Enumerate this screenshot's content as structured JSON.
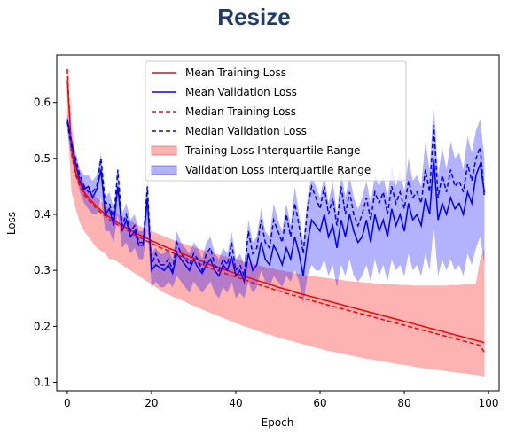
{
  "chart_data": {
    "type": "line",
    "title": "Resize",
    "xlabel": "Epoch",
    "ylabel": "Loss",
    "xlim": [
      -2.5,
      102.5
    ],
    "ylim": [
      0.085,
      0.685
    ],
    "xticks": [
      0,
      20,
      40,
      60,
      80,
      100
    ],
    "yticks": [
      0.1,
      0.2,
      0.3,
      0.4,
      0.5,
      0.6
    ],
    "grid": false,
    "legend_position": "top-center",
    "x": [
      0,
      1,
      2,
      3,
      4,
      5,
      6,
      7,
      8,
      9,
      10,
      11,
      12,
      13,
      14,
      15,
      16,
      17,
      18,
      19,
      20,
      21,
      22,
      23,
      24,
      25,
      26,
      27,
      28,
      29,
      30,
      31,
      32,
      33,
      34,
      35,
      36,
      37,
      38,
      39,
      40,
      41,
      42,
      43,
      44,
      45,
      46,
      47,
      48,
      49,
      50,
      51,
      52,
      53,
      54,
      55,
      56,
      57,
      58,
      59,
      60,
      61,
      62,
      63,
      64,
      65,
      66,
      67,
      68,
      69,
      70,
      71,
      72,
      73,
      74,
      75,
      76,
      77,
      78,
      79,
      80,
      81,
      82,
      83,
      84,
      85,
      86,
      87,
      88,
      89,
      90,
      91,
      92,
      93,
      94,
      95,
      96,
      97,
      98,
      99
    ],
    "series": [
      {
        "name": "Mean Training Loss",
        "color": "#ff0000",
        "style": "solid",
        "values": [
          0.64,
          0.52,
          0.475,
          0.455,
          0.44,
          0.43,
          0.422,
          0.414,
          0.407,
          0.401,
          0.395,
          0.39,
          0.385,
          0.38,
          0.376,
          0.372,
          0.368,
          0.364,
          0.36,
          0.357,
          0.353,
          0.35,
          0.346,
          0.343,
          0.34,
          0.337,
          0.334,
          0.331,
          0.328,
          0.325,
          0.322,
          0.319,
          0.316,
          0.313,
          0.31,
          0.308,
          0.305,
          0.302,
          0.3,
          0.297,
          0.295,
          0.292,
          0.29,
          0.287,
          0.285,
          0.282,
          0.28,
          0.278,
          0.275,
          0.273,
          0.27,
          0.268,
          0.266,
          0.264,
          0.261,
          0.259,
          0.257,
          0.255,
          0.253,
          0.251,
          0.249,
          0.247,
          0.245,
          0.243,
          0.241,
          0.239,
          0.237,
          0.235,
          0.233,
          0.231,
          0.229,
          0.227,
          0.225,
          0.223,
          0.221,
          0.219,
          0.217,
          0.215,
          0.213,
          0.211,
          0.209,
          0.207,
          0.205,
          0.203,
          0.201,
          0.199,
          0.197,
          0.195,
          0.193,
          0.191,
          0.189,
          0.187,
          0.185,
          0.183,
          0.181,
          0.179,
          0.177,
          0.175,
          0.173,
          0.171
        ]
      },
      {
        "name": "Mean Validation Loss",
        "color": "#0000ff",
        "style": "solid",
        "values": [
          0.57,
          0.53,
          0.49,
          0.46,
          0.445,
          0.45,
          0.43,
          0.445,
          0.48,
          0.4,
          0.41,
          0.38,
          0.45,
          0.37,
          0.39,
          0.36,
          0.37,
          0.345,
          0.345,
          0.43,
          0.3,
          0.31,
          0.305,
          0.3,
          0.31,
          0.295,
          0.33,
          0.32,
          0.31,
          0.3,
          0.32,
          0.305,
          0.295,
          0.31,
          0.32,
          0.3,
          0.29,
          0.31,
          0.3,
          0.325,
          0.29,
          0.3,
          0.28,
          0.33,
          0.3,
          0.31,
          0.35,
          0.32,
          0.31,
          0.345,
          0.33,
          0.31,
          0.34,
          0.32,
          0.36,
          0.33,
          0.29,
          0.35,
          0.39,
          0.38,
          0.37,
          0.4,
          0.36,
          0.38,
          0.34,
          0.39,
          0.36,
          0.4,
          0.37,
          0.35,
          0.36,
          0.39,
          0.35,
          0.4,
          0.37,
          0.39,
          0.36,
          0.41,
          0.38,
          0.4,
          0.37,
          0.42,
          0.39,
          0.4,
          0.38,
          0.43,
          0.4,
          0.5,
          0.39,
          0.42,
          0.4,
          0.43,
          0.41,
          0.42,
          0.4,
          0.44,
          0.42,
          0.47,
          0.49,
          0.44
        ]
      },
      {
        "name": "Median Training Loss",
        "color": "#ff0000",
        "style": "dashed",
        "values": [
          0.66,
          0.51,
          0.47,
          0.45,
          0.435,
          0.426,
          0.418,
          0.41,
          0.403,
          0.397,
          0.391,
          0.386,
          0.381,
          0.376,
          0.372,
          0.368,
          0.363,
          0.36,
          0.356,
          0.352,
          0.348,
          0.345,
          0.341,
          0.338,
          0.335,
          0.331,
          0.328,
          0.325,
          0.322,
          0.319,
          0.316,
          0.313,
          0.31,
          0.307,
          0.304,
          0.301,
          0.299,
          0.296,
          0.293,
          0.291,
          0.288,
          0.286,
          0.283,
          0.281,
          0.278,
          0.276,
          0.273,
          0.271,
          0.269,
          0.266,
          0.264,
          0.262,
          0.259,
          0.257,
          0.255,
          0.253,
          0.25,
          0.248,
          0.246,
          0.244,
          0.242,
          0.24,
          0.238,
          0.236,
          0.234,
          0.232,
          0.23,
          0.228,
          0.226,
          0.224,
          0.222,
          0.22,
          0.218,
          0.216,
          0.214,
          0.212,
          0.21,
          0.208,
          0.206,
          0.204,
          0.202,
          0.2,
          0.198,
          0.196,
          0.194,
          0.192,
          0.19,
          0.188,
          0.186,
          0.184,
          0.182,
          0.18,
          0.178,
          0.176,
          0.174,
          0.172,
          0.17,
          0.168,
          0.166,
          0.153
        ]
      },
      {
        "name": "Median Validation Loss",
        "color": "#0000ff",
        "style": "dashed",
        "values": [
          0.565,
          0.52,
          0.5,
          0.47,
          0.45,
          0.44,
          0.44,
          0.45,
          0.5,
          0.42,
          0.42,
          0.39,
          0.48,
          0.38,
          0.4,
          0.37,
          0.38,
          0.35,
          0.35,
          0.45,
          0.31,
          0.33,
          0.31,
          0.31,
          0.32,
          0.3,
          0.35,
          0.33,
          0.32,
          0.31,
          0.33,
          0.32,
          0.3,
          0.33,
          0.34,
          0.31,
          0.3,
          0.32,
          0.31,
          0.35,
          0.3,
          0.31,
          0.29,
          0.37,
          0.33,
          0.34,
          0.39,
          0.35,
          0.34,
          0.39,
          0.37,
          0.35,
          0.4,
          0.36,
          0.42,
          0.38,
          0.33,
          0.41,
          0.45,
          0.43,
          0.41,
          0.45,
          0.4,
          0.43,
          0.38,
          0.45,
          0.4,
          0.44,
          0.4,
          0.38,
          0.4,
          0.43,
          0.39,
          0.44,
          0.42,
          0.44,
          0.4,
          0.45,
          0.42,
          0.44,
          0.41,
          0.46,
          0.43,
          0.44,
          0.42,
          0.48,
          0.44,
          0.56,
          0.43,
          0.47,
          0.44,
          0.48,
          0.45,
          0.46,
          0.44,
          0.49,
          0.46,
          0.5,
          0.52,
          0.43
        ]
      }
    ],
    "bands": [
      {
        "name": "Training Loss Interquartile Range",
        "color": "#ff0000",
        "opacity": 0.3,
        "lower": [
          0.57,
          0.44,
          0.41,
          0.385,
          0.37,
          0.36,
          0.35,
          0.34,
          0.335,
          0.33,
          0.32,
          0.32,
          0.315,
          0.31,
          0.305,
          0.3,
          0.295,
          0.29,
          0.285,
          0.28,
          0.275,
          0.27,
          0.265,
          0.26,
          0.257,
          0.253,
          0.25,
          0.247,
          0.244,
          0.24,
          0.237,
          0.234,
          0.23,
          0.227,
          0.224,
          0.221,
          0.218,
          0.215,
          0.212,
          0.209,
          0.206,
          0.203,
          0.2,
          0.198,
          0.195,
          0.192,
          0.19,
          0.187,
          0.185,
          0.183,
          0.18,
          0.178,
          0.176,
          0.174,
          0.172,
          0.17,
          0.168,
          0.166,
          0.164,
          0.162,
          0.16,
          0.158,
          0.156,
          0.155,
          0.153,
          0.151,
          0.15,
          0.148,
          0.147,
          0.145,
          0.144,
          0.142,
          0.141,
          0.14,
          0.138,
          0.137,
          0.136,
          0.134,
          0.133,
          0.132,
          0.131,
          0.13,
          0.128,
          0.127,
          0.126,
          0.125,
          0.124,
          0.123,
          0.122,
          0.121,
          0.12,
          0.119,
          0.118,
          0.117,
          0.116,
          0.115,
          0.114,
          0.113,
          0.112,
          0.11
        ],
        "upper": [
          0.66,
          0.56,
          0.5,
          0.47,
          0.455,
          0.445,
          0.437,
          0.43,
          0.423,
          0.417,
          0.411,
          0.406,
          0.401,
          0.396,
          0.392,
          0.388,
          0.384,
          0.38,
          0.377,
          0.373,
          0.37,
          0.367,
          0.364,
          0.361,
          0.358,
          0.355,
          0.352,
          0.349,
          0.347,
          0.344,
          0.342,
          0.339,
          0.337,
          0.335,
          0.333,
          0.33,
          0.328,
          0.326,
          0.324,
          0.322,
          0.32,
          0.318,
          0.316,
          0.314,
          0.312,
          0.31,
          0.308,
          0.306,
          0.305,
          0.303,
          0.301,
          0.3,
          0.298,
          0.297,
          0.295,
          0.294,
          0.292,
          0.291,
          0.29,
          0.289,
          0.288,
          0.287,
          0.286,
          0.285,
          0.284,
          0.283,
          0.282,
          0.281,
          0.28,
          0.28,
          0.279,
          0.278,
          0.278,
          0.277,
          0.276,
          0.276,
          0.275,
          0.275,
          0.275,
          0.274,
          0.274,
          0.274,
          0.273,
          0.273,
          0.273,
          0.273,
          0.273,
          0.273,
          0.273,
          0.273,
          0.273,
          0.274,
          0.274,
          0.274,
          0.275,
          0.275,
          0.276,
          0.277,
          0.32,
          0.34
        ]
      },
      {
        "name": "Validation Loss Interquartile Range",
        "color": "#0000ff",
        "opacity": 0.3,
        "lower": [
          0.55,
          0.5,
          0.47,
          0.44,
          0.42,
          0.41,
          0.4,
          0.4,
          0.43,
          0.37,
          0.37,
          0.35,
          0.4,
          0.34,
          0.35,
          0.33,
          0.34,
          0.32,
          0.32,
          0.38,
          0.27,
          0.28,
          0.27,
          0.27,
          0.28,
          0.27,
          0.29,
          0.28,
          0.27,
          0.26,
          0.28,
          0.27,
          0.26,
          0.27,
          0.28,
          0.26,
          0.25,
          0.27,
          0.26,
          0.28,
          0.25,
          0.26,
          0.25,
          0.28,
          0.26,
          0.27,
          0.3,
          0.28,
          0.27,
          0.29,
          0.28,
          0.27,
          0.29,
          0.28,
          0.3,
          0.28,
          0.24,
          0.29,
          0.31,
          0.3,
          0.3,
          0.32,
          0.29,
          0.31,
          0.27,
          0.31,
          0.29,
          0.32,
          0.29,
          0.28,
          0.29,
          0.31,
          0.28,
          0.32,
          0.29,
          0.31,
          0.28,
          0.32,
          0.3,
          0.31,
          0.29,
          0.33,
          0.3,
          0.31,
          0.29,
          0.33,
          0.3,
          0.38,
          0.29,
          0.32,
          0.3,
          0.32,
          0.3,
          0.31,
          0.29,
          0.33,
          0.31,
          0.34,
          0.36,
          0.31
        ],
        "upper": [
          0.58,
          0.54,
          0.51,
          0.48,
          0.47,
          0.47,
          0.46,
          0.47,
          0.51,
          0.43,
          0.44,
          0.41,
          0.48,
          0.4,
          0.42,
          0.39,
          0.4,
          0.37,
          0.37,
          0.46,
          0.33,
          0.34,
          0.33,
          0.33,
          0.34,
          0.32,
          0.37,
          0.35,
          0.34,
          0.33,
          0.35,
          0.34,
          0.32,
          0.35,
          0.36,
          0.33,
          0.32,
          0.34,
          0.33,
          0.37,
          0.32,
          0.33,
          0.31,
          0.39,
          0.35,
          0.36,
          0.41,
          0.37,
          0.36,
          0.42,
          0.39,
          0.37,
          0.42,
          0.38,
          0.45,
          0.4,
          0.35,
          0.43,
          0.47,
          0.45,
          0.43,
          0.47,
          0.42,
          0.46,
          0.4,
          0.48,
          0.43,
          0.47,
          0.43,
          0.41,
          0.43,
          0.46,
          0.42,
          0.47,
          0.45,
          0.47,
          0.43,
          0.49,
          0.45,
          0.48,
          0.44,
          0.5,
          0.46,
          0.47,
          0.45,
          0.53,
          0.48,
          0.6,
          0.47,
          0.52,
          0.48,
          0.53,
          0.5,
          0.51,
          0.48,
          0.54,
          0.51,
          0.55,
          0.57,
          0.5
        ]
      }
    ]
  }
}
